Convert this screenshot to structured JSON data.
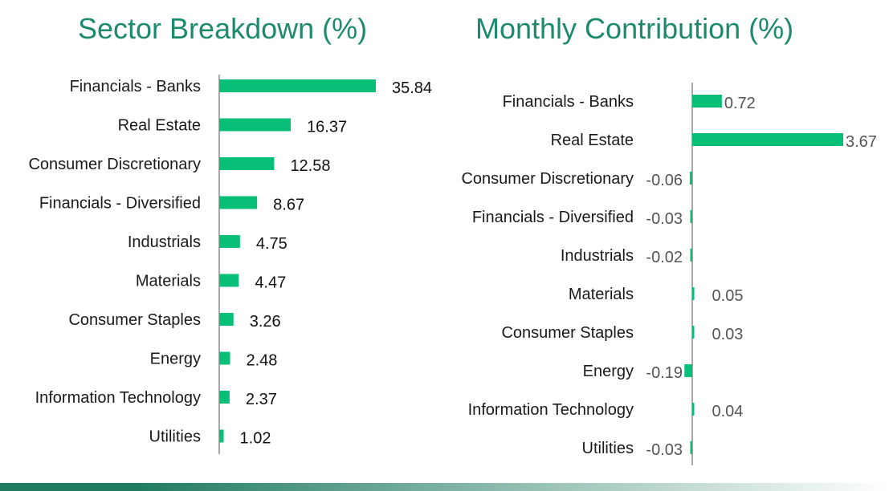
{
  "colors": {
    "title": "#1e8a6c",
    "bar": "#08bf78",
    "axis": "#8a8a8a",
    "value_left": "#111111",
    "value_right": "#555555",
    "footer_start": "#1f7a61",
    "footer_end": "#ffffff"
  },
  "chart_data": [
    {
      "type": "bar",
      "orientation": "horizontal",
      "title": "Sector Breakdown (%)",
      "xlabel": "",
      "ylabel": "",
      "categories": [
        "Financials - Banks",
        "Real Estate",
        "Consumer Discretionary",
        "Financials - Diversified",
        "Industrials",
        "Materials",
        "Consumer Staples",
        "Energy",
        "Information Technology",
        "Utilities"
      ],
      "values": [
        35.84,
        16.37,
        12.58,
        8.67,
        4.75,
        4.47,
        3.26,
        2.48,
        2.37,
        1.02
      ],
      "value_labels": [
        "35.84",
        "16.37",
        "12.58",
        "8.67",
        "4.75",
        "4.47",
        "3.26",
        "2.48",
        "2.37",
        "1.02"
      ],
      "xlim": [
        0,
        36
      ],
      "grid": false,
      "legend": "none"
    },
    {
      "type": "bar",
      "orientation": "horizontal",
      "title": "Monthly Contribution (%)",
      "xlabel": "",
      "ylabel": "",
      "categories": [
        "Financials - Banks",
        "Real Estate",
        "Consumer Discretionary",
        "Financials - Diversified",
        "Industrials",
        "Materials",
        "Consumer Staples",
        "Energy",
        "Information Technology",
        "Utilities"
      ],
      "values": [
        0.72,
        3.67,
        -0.06,
        -0.03,
        -0.02,
        0.05,
        0.03,
        -0.19,
        0.04,
        -0.03
      ],
      "value_labels": [
        "0.72",
        "3.67",
        "-0.06",
        "-0.03",
        "-0.02",
        "0.05",
        "0.03",
        "-0.19",
        "0.04",
        "-0.03"
      ],
      "xlim": [
        -0.2,
        3.7
      ],
      "grid": false,
      "legend": "none"
    }
  ]
}
